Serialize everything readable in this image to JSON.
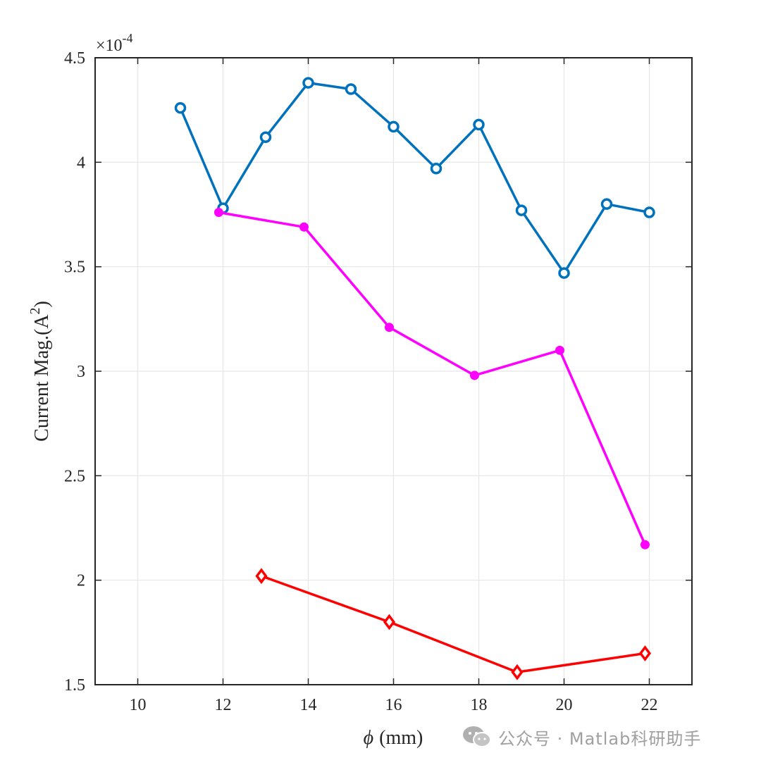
{
  "chart_data": {
    "type": "line",
    "title": "",
    "xlabel": "(mm)",
    "xlabel_symbol": "ϕ",
    "ylabel": "Current Mag.(A",
    "ylabel_sup": "2",
    "ylabel_close": ")",
    "y_exponent_base": "×10",
    "y_exponent_power": "-4",
    "xlim": [
      9,
      23
    ],
    "ylim": [
      1.5,
      4.5
    ],
    "xticks": [
      10,
      12,
      14,
      16,
      18,
      20,
      22
    ],
    "xtick_labels": [
      "10",
      "12",
      "14",
      "16",
      "18",
      "20",
      "22"
    ],
    "yticks": [
      1.5,
      2,
      2.5,
      3,
      3.5,
      4,
      4.5
    ],
    "ytick_labels": [
      "1.5",
      "2",
      "2.5",
      "3",
      "3.5",
      "4",
      "4.5"
    ],
    "grid": true,
    "series": [
      {
        "color": "#0072bd",
        "marker": "circle-open",
        "x": [
          11,
          12,
          13,
          14,
          15,
          16,
          17,
          18,
          19,
          20,
          21,
          22
        ],
        "y": [
          4.26,
          3.78,
          4.12,
          4.38,
          4.35,
          4.17,
          3.97,
          4.18,
          3.77,
          3.47,
          3.8,
          3.76
        ]
      },
      {
        "color": "#ff00ff",
        "marker": "dot",
        "x": [
          11.9,
          13.9,
          15.9,
          17.9,
          19.9,
          21.9
        ],
        "y": [
          3.76,
          3.69,
          3.21,
          2.98,
          3.1,
          2.17
        ]
      },
      {
        "color": "#ff0000",
        "marker": "diamond-open",
        "x": [
          12.9,
          15.9,
          18.9,
          21.9
        ],
        "y": [
          2.02,
          1.8,
          1.56,
          1.65
        ]
      }
    ]
  },
  "watermark": {
    "icon": "wechat-icon",
    "text": "公众号 · Matlab科研助手"
  }
}
